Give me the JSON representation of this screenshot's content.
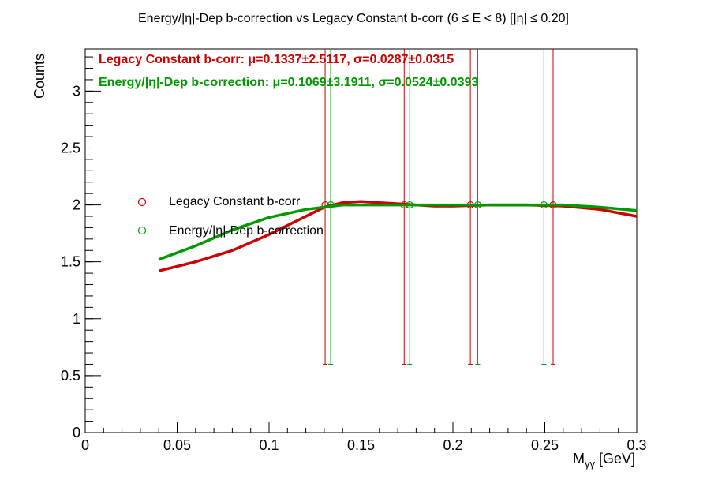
{
  "chart_data": {
    "type": "scatter",
    "title": "Energy/|η|-Dep b-correction vs Legacy Constant b-corr   (6 ≤ E < 8)   [|η| ≤ 0.20]",
    "xlabel": "M",
    "xlabel_sub": "γγ",
    "xlabel_unit": " [GeV]",
    "ylabel": "Counts",
    "xlim": [
      0,
      0.3
    ],
    "ylim": [
      0,
      3.37
    ],
    "x_ticks": [
      0,
      0.05,
      0.1,
      0.15,
      0.2,
      0.25,
      0.3
    ],
    "x_tick_labels": [
      "0",
      "0.05",
      "0.1",
      "0.15",
      "0.2",
      "0.25",
      "0.3"
    ],
    "y_ticks": [
      0,
      0.5,
      1,
      1.5,
      2,
      2.5,
      3
    ],
    "y_tick_labels": [
      "0",
      "0.5",
      "1",
      "1.5",
      "2",
      "2.5",
      "3"
    ],
    "legend_position": "center-left",
    "series": [
      {
        "name": "Legacy Constant b-corr",
        "color": "#cc0000",
        "stats_label": "Legacy Constant b-corr: μ=0.1337±2.5117, σ=0.0287±0.0315",
        "points": [
          {
            "x": 0.1305,
            "y": 2.0,
            "ylo": 0.6,
            "yhi": 3.37
          },
          {
            "x": 0.1735,
            "y": 2.0,
            "ylo": 0.6,
            "yhi": 3.37
          },
          {
            "x": 0.2095,
            "y": 2.0,
            "ylo": 0.6,
            "yhi": 3.37
          },
          {
            "x": 0.2545,
            "y": 2.0,
            "ylo": 0.6,
            "yhi": 3.37
          }
        ],
        "fit_curve": {
          "x": [
            0.04,
            0.06,
            0.08,
            0.1,
            0.12,
            0.13,
            0.14,
            0.15,
            0.16,
            0.17,
            0.18,
            0.19,
            0.2,
            0.22,
            0.24,
            0.26,
            0.28,
            0.3
          ],
          "y": [
            1.42,
            1.5,
            1.6,
            1.74,
            1.9,
            1.98,
            2.02,
            2.03,
            2.02,
            2.01,
            2.0,
            1.99,
            1.99,
            2.0,
            2.0,
            1.99,
            1.96,
            1.9
          ]
        }
      },
      {
        "name": "Energy/|η|-Dep b-correction",
        "color": "#009900",
        "stats_label": "Energy/|η|-Dep b-correction: μ=0.1069±3.1911, σ=0.0524±0.0393",
        "points": [
          {
            "x": 0.1335,
            "y": 2.0,
            "ylo": 0.6,
            "yhi": 3.37
          },
          {
            "x": 0.1765,
            "y": 2.0,
            "ylo": 0.6,
            "yhi": 3.37
          },
          {
            "x": 0.2135,
            "y": 2.0,
            "ylo": 0.6,
            "yhi": 3.37
          },
          {
            "x": 0.2495,
            "y": 2.0,
            "ylo": 0.6,
            "yhi": 3.37
          }
        ],
        "fit_curve": {
          "x": [
            0.04,
            0.06,
            0.08,
            0.1,
            0.12,
            0.14,
            0.16,
            0.18,
            0.2,
            0.22,
            0.24,
            0.26,
            0.28,
            0.3
          ],
          "y": [
            1.52,
            1.64,
            1.78,
            1.89,
            1.96,
            2.0,
            2.0,
            2.0,
            2.0,
            2.0,
            2.0,
            2.0,
            1.98,
            1.95
          ]
        }
      }
    ]
  }
}
